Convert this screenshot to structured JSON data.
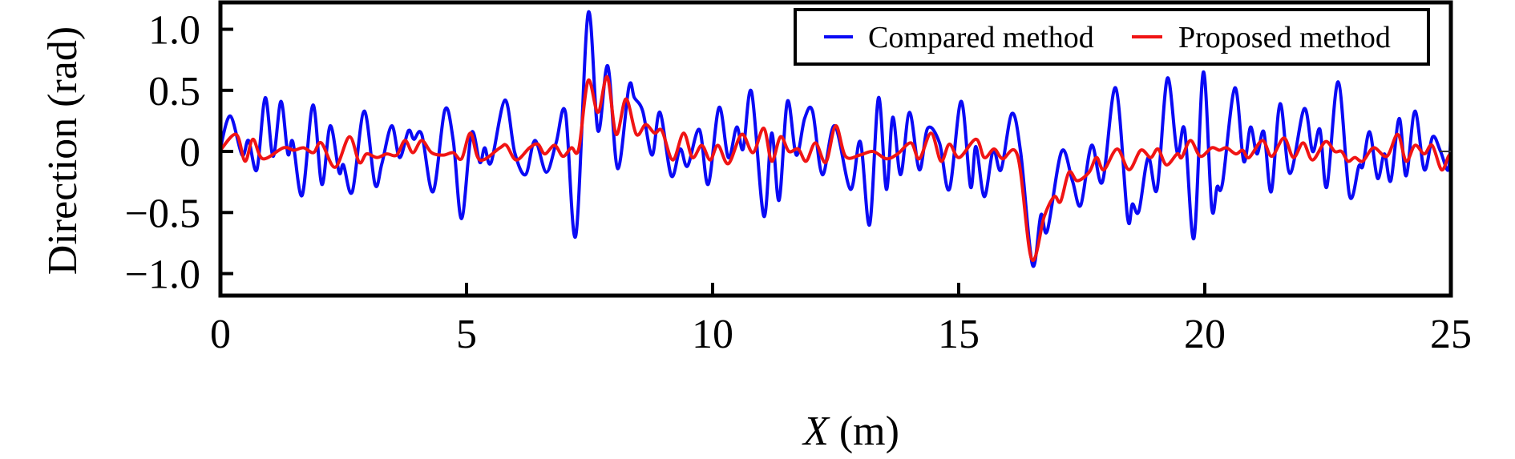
{
  "chart_data": {
    "type": "line",
    "title": "",
    "xlabel": "X (m)",
    "xlabel_var": "X",
    "xlabel_unit": " (m)",
    "ylabel": "Direction (rad)",
    "xlim": [
      0,
      25
    ],
    "ylim": [
      -1.18,
      1.22
    ],
    "xticks": [
      0,
      5,
      10,
      15,
      20,
      25
    ],
    "xtick_labels": [
      "0",
      "5",
      "10",
      "15",
      "20",
      "25"
    ],
    "yticks": [
      1.0,
      0.5,
      0,
      -0.5,
      -1.0
    ],
    "ytick_labels": [
      "1.0",
      "0.5",
      "0",
      "−0.5",
      "−1.0"
    ],
    "grid": false,
    "legend_position": "top-right",
    "series": [
      {
        "name": "Compared method",
        "color": "#0a0af5",
        "x": [
          0,
          0.2,
          0.44,
          0.57,
          0.74,
          0.91,
          1.07,
          1.23,
          1.37,
          1.47,
          1.66,
          1.88,
          2.06,
          2.23,
          2.41,
          2.5,
          2.68,
          2.92,
          3.14,
          3.28,
          3.48,
          3.64,
          3.82,
          3.93,
          4.09,
          4.32,
          4.56,
          4.73,
          4.9,
          5.1,
          5.27,
          5.37,
          5.5,
          5.78,
          5.98,
          6.2,
          6.39,
          6.62,
          6.82,
          7.01,
          7.22,
          7.47,
          7.67,
          7.87,
          8.07,
          8.3,
          8.41,
          8.58,
          8.77,
          8.93,
          9.16,
          9.34,
          9.49,
          9.73,
          9.91,
          10.13,
          10.32,
          10.49,
          10.62,
          10.79,
          11.04,
          11.2,
          11.35,
          11.52,
          11.7,
          11.87,
          12.03,
          12.23,
          12.48,
          12.8,
          13.0,
          13.19,
          13.37,
          13.53,
          13.66,
          13.82,
          14.0,
          14.2,
          14.37,
          14.61,
          14.81,
          15.05,
          15.24,
          15.35,
          15.52,
          15.7,
          15.86,
          16.08,
          16.26,
          16.5,
          16.67,
          16.8,
          17.09,
          17.31,
          17.48,
          17.7,
          17.92,
          18.19,
          18.43,
          18.53,
          18.66,
          18.85,
          19.03,
          19.24,
          19.44,
          19.59,
          19.78,
          19.97,
          20.14,
          20.25,
          20.36,
          20.61,
          20.79,
          20.93,
          21.06,
          21.2,
          21.35,
          21.53,
          21.73,
          22.02,
          22.19,
          22.34,
          22.48,
          22.71,
          22.94,
          23.13,
          23.21,
          23.35,
          23.51,
          23.65,
          23.78,
          23.95,
          24.09,
          24.27,
          24.46,
          24.63,
          24.79,
          24.95,
          25.0
        ],
        "y": [
          0.03,
          0.29,
          -0.03,
          0.09,
          -0.15,
          0.44,
          -0.04,
          0.41,
          -0.02,
          0.08,
          -0.36,
          0.38,
          -0.27,
          0.21,
          -0.17,
          -0.11,
          -0.33,
          0.33,
          -0.27,
          -0.1,
          0.21,
          -0.05,
          0.17,
          0.1,
          0.14,
          -0.33,
          0.34,
          0.09,
          -0.55,
          0.15,
          -0.09,
          0.03,
          -0.09,
          0.42,
          -0.01,
          -0.19,
          0.09,
          -0.17,
          0.07,
          0.32,
          -0.69,
          1.13,
          0.17,
          0.7,
          -0.14,
          0.53,
          0.44,
          0.33,
          -0.03,
          0.32,
          -0.2,
          0.02,
          -0.12,
          0.18,
          -0.27,
          0.36,
          -0.05,
          0.2,
          0.02,
          0.49,
          -0.53,
          0.15,
          -0.4,
          0.41,
          -0.03,
          0.27,
          0.33,
          -0.19,
          0.21,
          -0.31,
          0.08,
          -0.6,
          0.44,
          -0.31,
          0.28,
          -0.19,
          0.32,
          -0.15,
          0.19,
          0.07,
          -0.31,
          0.41,
          -0.29,
          0.04,
          -0.37,
          0.01,
          -0.15,
          0.31,
          -0.01,
          -0.93,
          -0.52,
          -0.65,
          0,
          -0.24,
          -0.44,
          0.05,
          -0.25,
          0.52,
          -0.54,
          -0.43,
          -0.49,
          -0.05,
          -0.31,
          0.6,
          -0.01,
          0.18,
          -0.71,
          0.65,
          -0.46,
          -0.29,
          -0.26,
          0.52,
          -0.08,
          0.2,
          -0.02,
          0.16,
          -0.33,
          0.39,
          -0.18,
          0.35,
          0,
          0.18,
          -0.29,
          0.57,
          -0.36,
          -0.12,
          -0.12,
          0.16,
          -0.22,
          -0.02,
          -0.24,
          0.27,
          -0.2,
          0.33,
          -0.15,
          0.12,
          0,
          -0.15,
          0.18
        ]
      },
      {
        "name": "Proposed method",
        "color": "#f01414",
        "x": [
          0,
          0.32,
          0.5,
          0.66,
          0.86,
          1.28,
          1.49,
          1.69,
          1.89,
          2.05,
          2.33,
          2.62,
          2.82,
          2.97,
          3.18,
          3.38,
          3.58,
          3.75,
          3.91,
          4.09,
          4.29,
          4.53,
          4.73,
          4.9,
          5.08,
          5.27,
          5.68,
          5.81,
          6.01,
          6.28,
          6.45,
          6.59,
          6.79,
          6.96,
          7.13,
          7.28,
          7.47,
          7.67,
          7.86,
          8.04,
          8.24,
          8.45,
          8.64,
          8.82,
          8.97,
          9.19,
          9.41,
          9.59,
          9.78,
          9.95,
          10.11,
          10.32,
          10.59,
          10.82,
          11.04,
          11.2,
          11.38,
          11.55,
          11.74,
          11.9,
          12.09,
          12.3,
          12.5,
          12.7,
          12.99,
          13.26,
          13.53,
          13.76,
          14.03,
          14.2,
          14.44,
          14.64,
          14.81,
          15.01,
          15.35,
          15.52,
          15.72,
          15.89,
          16.2,
          16.48,
          16.74,
          16.94,
          17.07,
          17.24,
          17.41,
          17.65,
          17.8,
          17.95,
          18.22,
          18.46,
          18.7,
          18.9,
          19.05,
          19.22,
          19.44,
          19.53,
          19.71,
          19.91,
          20.14,
          20.3,
          20.44,
          20.63,
          20.77,
          20.9,
          21.17,
          21.36,
          21.61,
          21.8,
          22.0,
          22.19,
          22.45,
          22.64,
          22.78,
          22.91,
          23.05,
          23.21,
          23.43,
          23.7,
          23.92,
          24.09,
          24.27,
          24.46,
          24.62,
          24.81,
          24.95,
          25.0
        ],
        "y": [
          0.01,
          0.14,
          -0.08,
          0.1,
          -0.06,
          0.03,
          0.01,
          0.03,
          -0.01,
          0.07,
          -0.13,
          0.12,
          -0.09,
          -0.02,
          -0.05,
          -0.02,
          -0.03,
          0.09,
          -0.01,
          0.09,
          -0.01,
          -0.03,
          -0.01,
          -0.06,
          0.15,
          -0.07,
          0.03,
          0.05,
          -0.07,
          0.03,
          0.06,
          -0.02,
          0.05,
          -0.04,
          0.03,
          0.02,
          0.58,
          0.32,
          0.61,
          0.14,
          0.43,
          0.14,
          0.22,
          0.15,
          0.17,
          -0.07,
          0.15,
          -0.05,
          0.05,
          -0.07,
          0.05,
          -0.1,
          0.14,
          -0.01,
          0.19,
          -0.08,
          0.12,
          0,
          0.02,
          -0.08,
          0.07,
          -0.09,
          0.21,
          -0.04,
          -0.03,
          0,
          -0.06,
          -0.02,
          0.07,
          -0.06,
          0.15,
          -0.08,
          0.06,
          -0.05,
          0.1,
          -0.05,
          0.02,
          -0.06,
          -0.04,
          -0.88,
          -0.53,
          -0.37,
          -0.41,
          -0.17,
          -0.24,
          -0.17,
          -0.05,
          -0.15,
          0.02,
          -0.15,
          0.01,
          -0.05,
          0.02,
          -0.11,
          -0.02,
          -0.05,
          0.09,
          -0.04,
          0.03,
          0.01,
          0.03,
          -0.02,
          0.01,
          -0.05,
          0.09,
          -0.04,
          0.11,
          -0.05,
          0.07,
          -0.07,
          0.08,
          0,
          0,
          -0.08,
          -0.05,
          -0.08,
          0.03,
          -0.04,
          0.14,
          -0.08,
          0.05,
          -0.02,
          0.05,
          -0.15,
          -0.04,
          -0.02
        ]
      }
    ]
  }
}
